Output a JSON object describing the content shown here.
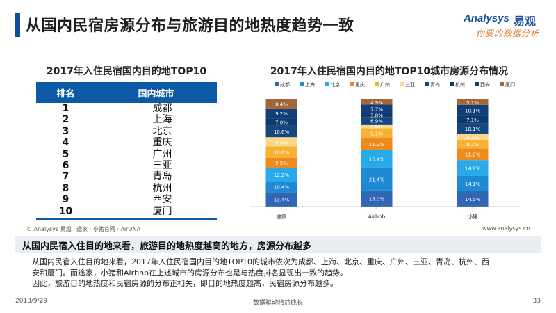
{
  "slide": {
    "title": "从国内民宿房源分布与旅游目的地热度趋势一致",
    "brand": {
      "name_en": "Analysys",
      "name_cn": "易观",
      "slogan": "你要的数据分析"
    }
  },
  "ranking": {
    "title": "2017年入住民宿国内目的地TOP10",
    "columns": [
      "排名",
      "国内城市"
    ],
    "rows": [
      {
        "rank": "1",
        "city": "成都"
      },
      {
        "rank": "2",
        "city": "上海"
      },
      {
        "rank": "3",
        "city": "北京"
      },
      {
        "rank": "4",
        "city": "重庆"
      },
      {
        "rank": "5",
        "city": "广州"
      },
      {
        "rank": "6",
        "city": "三亚"
      },
      {
        "rank": "7",
        "city": "青岛"
      },
      {
        "rank": "8",
        "city": "杭州"
      },
      {
        "rank": "9",
        "city": "西安"
      },
      {
        "rank": "10",
        "city": "厦门"
      }
    ]
  },
  "chart_data": {
    "type": "bar",
    "stacked": true,
    "normalized": true,
    "title": "2017年入住民宿国内目的地TOP10城市房源分布情况",
    "categories": [
      "途家",
      "Airbnb",
      "小猪"
    ],
    "legend_position": "top",
    "series": [
      {
        "name": "成都",
        "color": "#2f67b5",
        "values": [
          13.4,
          15.0,
          14.5
        ],
        "labels": [
          "13.4%",
          "15.0%",
          "14.5%"
        ]
      },
      {
        "name": "上海",
        "color": "#1e8ad6",
        "values": [
          10.4,
          21.4,
          14.1
        ],
        "labels": [
          "10.4%",
          "21.4%",
          "14.1%"
        ]
      },
      {
        "name": "北京",
        "color": "#27a9ea",
        "values": [
          12.2,
          16.4,
          14.8
        ],
        "labels": [
          "12.2%",
          "16.4%",
          "14.8%"
        ]
      },
      {
        "name": "重庆",
        "color": "#ef8b1c",
        "values": [
          9.5,
          11.2,
          11.0
        ],
        "labels": [
          "9.5%",
          "11.2%",
          "11.0%"
        ]
      },
      {
        "name": "广州",
        "color": "#f7b234",
        "values": [
          10.8,
          9.1,
          8.1
        ],
        "labels": [
          "10.8%",
          "9.1%",
          "8.1%"
        ]
      },
      {
        "name": "三亚",
        "color": "#fbd889",
        "values": [
          8.5,
          3.6,
          5.1
        ],
        "labels": [
          "8.5%",
          "3.6%",
          "5.1%"
        ]
      },
      {
        "name": "青岛",
        "color": "#14477f",
        "values": [
          10.6,
          6.9,
          10.1
        ],
        "labels": [
          "10.6%",
          "6.9%",
          "10.1%"
        ]
      },
      {
        "name": "杭州",
        "color": "#0c3a6e",
        "values": [
          7.0,
          3.8,
          7.1
        ],
        "labels": [
          "7.0%",
          "3.8%",
          "7.1%"
        ]
      },
      {
        "name": "西安",
        "color": "#103f7a",
        "values": [
          9.2,
          7.7,
          10.1
        ],
        "labels": [
          "9.2%",
          "7.7%",
          "10.1%"
        ]
      },
      {
        "name": "厦门",
        "color": "#a0673a",
        "values": [
          8.4,
          4.9,
          5.1
        ],
        "labels": [
          "8.4%",
          "4.9%",
          "5.1%"
        ]
      }
    ]
  },
  "notes": {
    "source": "© Analysys 易观 · 途家 · 小猪官网 · AirDNA",
    "site": "www.analysys.cn"
  },
  "conclusion": "从国内民宿入住目的地来看，旅游目的地热度越高的地方，房源分布越多",
  "body": [
    "从国内民宿入住目的地来看，2017年入住民宿国内目的地TOP10的城市依次为成都、上海、北京、重庆、广州、三亚、青岛、杭州、西",
    "安和厦门。而途家，小猪和Airbnb在上述城市的房源分布也是与热度排名显现出一致的趋势。",
    "因此，旅游目的地热度和民宿房源的分布正相关，即目的地热度越高，民宿房源分布越多。"
  ],
  "footer": {
    "date": "2018/9/29",
    "tagline": "数据驱动精益成长",
    "page": "33"
  }
}
